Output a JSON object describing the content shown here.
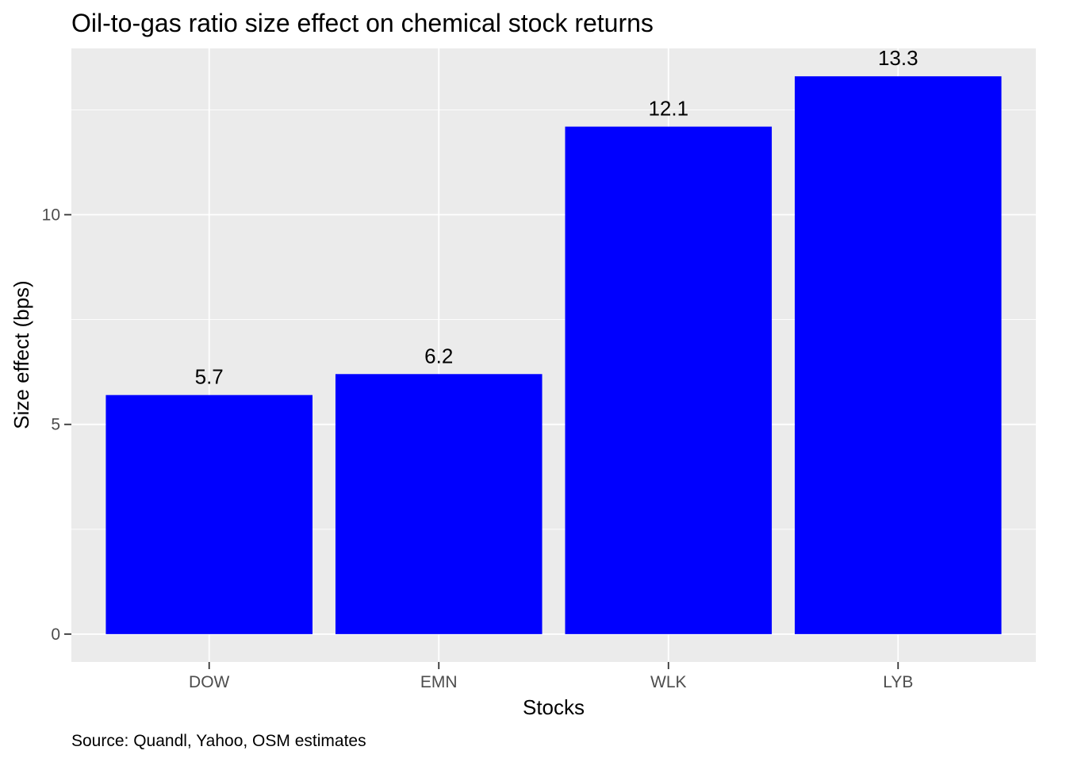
{
  "chart_data": {
    "type": "bar",
    "title": "Oil-to-gas ratio size effect on chemical stock returns",
    "xlabel": "Stocks",
    "ylabel": "Size effect (bps)",
    "caption": "Source: Quandl, Yahoo, OSM estimates",
    "categories": [
      "DOW",
      "EMN",
      "WLK",
      "LYB"
    ],
    "values": [
      5.7,
      6.2,
      12.1,
      13.3
    ],
    "data_labels": [
      "5.7",
      "6.2",
      "12.1",
      "13.3"
    ],
    "y_ticks": [
      0,
      5,
      10
    ],
    "y_tick_labels": [
      "0",
      "5",
      "10"
    ],
    "ylim": [
      -0.665,
      13.965
    ],
    "grid": true,
    "legend": "none",
    "colors": {
      "bar": "#0000ff",
      "panel_background": "#ebebeb",
      "grid": "#ffffff",
      "tick_label": "#4d4d4d"
    }
  }
}
